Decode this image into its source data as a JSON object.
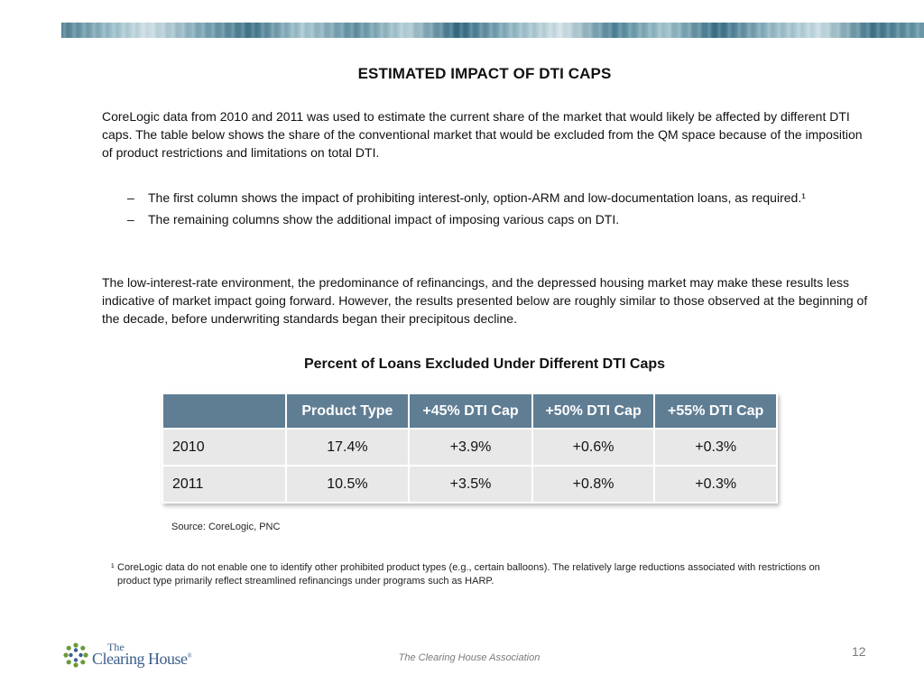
{
  "title": "ESTIMATED IMPACT OF DTI CAPS",
  "intro": "CoreLogic data from 2010 and 2011 was used to estimate the current share of the market that would likely be affected by different DTI caps.  The table below shows the share of the conventional market that would be excluded from the QM space because of the imposition of product restrictions and limitations on total DTI.",
  "bullets": [
    {
      "dash": "–",
      "text": "The first column shows the impact of prohibiting interest-only, option-ARM and low-documentation loans, as required.¹"
    },
    {
      "dash": "–",
      "text": "The remaining columns show the additional impact of imposing various caps on DTI."
    }
  ],
  "note": "The low-interest-rate environment, the predominance of refinancings, and the depressed housing market may make these results less indicative of market impact going forward. However, the results presented below are roughly similar to those observed at the beginning of the decade, before underwriting standards began their precipitous decline.",
  "table": {
    "title": "Percent of Loans Excluded Under Different DTI Caps",
    "headers": [
      "",
      "Product Type",
      "+45% DTI Cap",
      "+50% DTI Cap",
      "+55% DTI Cap"
    ],
    "rows": [
      [
        "2010",
        "17.4%",
        "+3.9%",
        "+0.6%",
        "+0.3%"
      ],
      [
        "2011",
        "10.5%",
        "+3.5%",
        "+0.8%",
        "+0.3%"
      ]
    ]
  },
  "source": "Source:  CoreLogic, PNC",
  "footnote": {
    "mark": "¹",
    "text": "CoreLogic data do not enable one to identify other prohibited product types (e.g., certain balloons).  The relatively large reductions associated with restrictions on product type primarily reflect  streamlined refinancings under programs such as HARP."
  },
  "logo": {
    "the": "The",
    "name": "Clearing House",
    "reg": "®"
  },
  "footer": "The Clearing House Association",
  "page_number": "12",
  "colors": {
    "header_bg": "#5f7d93",
    "cell_bg": "#e8e8e8",
    "logo_blue": "#3b5f8a",
    "logo_green": "#6a9a3a"
  }
}
